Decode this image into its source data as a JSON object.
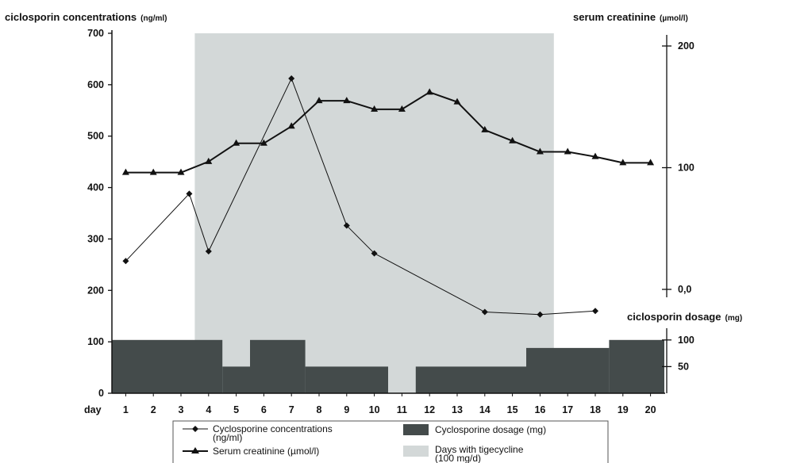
{
  "chart_data": {
    "type": "line",
    "x_axis": {
      "label": "day",
      "categories": [
        1,
        2,
        3,
        4,
        5,
        6,
        7,
        8,
        9,
        10,
        11,
        12,
        13,
        14,
        15,
        16,
        17,
        18,
        19,
        20
      ]
    },
    "y_left": {
      "title": "ciclosporin concentrations",
      "unit": "(ng/ml)",
      "ticks": [
        0,
        100,
        200,
        300,
        400,
        500,
        600,
        700
      ],
      "range": [
        0,
        700
      ]
    },
    "y_right_upper": {
      "title": "serum creatinine",
      "unit": "(µmol/l)",
      "ticks": [
        {
          "label": "200",
          "value": 200
        },
        {
          "label": "100",
          "value": 100
        },
        {
          "label": "0,0",
          "value": 0
        }
      ],
      "range": [
        0,
        200
      ]
    },
    "y_right_lower": {
      "title": "ciclosporin dosage",
      "unit": "(mg)",
      "ticks": [
        {
          "label": "100",
          "value": 100
        },
        {
          "label": "50",
          "value": 50
        }
      ],
      "range": [
        0,
        125
      ]
    },
    "series": [
      {
        "name": "Cyclosporine concentrations",
        "name_unit": "(ng/ml)",
        "marker": "diamond",
        "axis": "left",
        "points": [
          {
            "x": 1,
            "y": 257
          },
          {
            "x": 3.3,
            "y": 388
          },
          {
            "x": 4,
            "y": 276
          },
          {
            "x": 7,
            "y": 612
          },
          {
            "x": 9,
            "y": 326
          },
          {
            "x": 10,
            "y": 272
          },
          {
            "x": 14,
            "y": 158
          },
          {
            "x": 16,
            "y": 153
          },
          {
            "x": 18,
            "y": 160
          }
        ]
      },
      {
        "name": "Serum creatinine (µmol/l)",
        "marker": "triangle",
        "axis": "right_upper",
        "points": [
          {
            "x": 1,
            "y": 96
          },
          {
            "x": 2,
            "y": 96
          },
          {
            "x": 3,
            "y": 96
          },
          {
            "x": 4,
            "y": 105
          },
          {
            "x": 5,
            "y": 120
          },
          {
            "x": 6,
            "y": 120
          },
          {
            "x": 7,
            "y": 134
          },
          {
            "x": 8,
            "y": 155
          },
          {
            "x": 9,
            "y": 155
          },
          {
            "x": 10,
            "y": 148
          },
          {
            "x": 11,
            "y": 148
          },
          {
            "x": 12,
            "y": 162
          },
          {
            "x": 13,
            "y": 154
          },
          {
            "x": 14,
            "y": 131
          },
          {
            "x": 15,
            "y": 122
          },
          {
            "x": 16,
            "y": 113
          },
          {
            "x": 17,
            "y": 113
          },
          {
            "x": 18,
            "y": 109
          },
          {
            "x": 19,
            "y": 104
          },
          {
            "x": 20,
            "y": 104
          }
        ]
      }
    ],
    "dosage_bars": {
      "name": "Cyclosporine dosage (mg)",
      "axis": "right_lower",
      "color": "#444b4b",
      "segments": [
        {
          "from": 0.5,
          "to": 4.5,
          "value": 100
        },
        {
          "from": 4.5,
          "to": 5.5,
          "value": 50
        },
        {
          "from": 5.5,
          "to": 7.5,
          "value": 100
        },
        {
          "from": 7.5,
          "to": 10.5,
          "value": 50
        },
        {
          "from": 11.5,
          "to": 15.5,
          "value": 50
        },
        {
          "from": 15.5,
          "to": 18.5,
          "value": 85
        },
        {
          "from": 18.5,
          "to": 20.5,
          "value": 100
        }
      ]
    },
    "tigecycline_period": {
      "name": "Days with tigecycline",
      "name_unit": "(100 mg/d)",
      "from": 3.5,
      "to": 16.5,
      "color": "#d3d8d8"
    },
    "legend_position": "bottom"
  }
}
